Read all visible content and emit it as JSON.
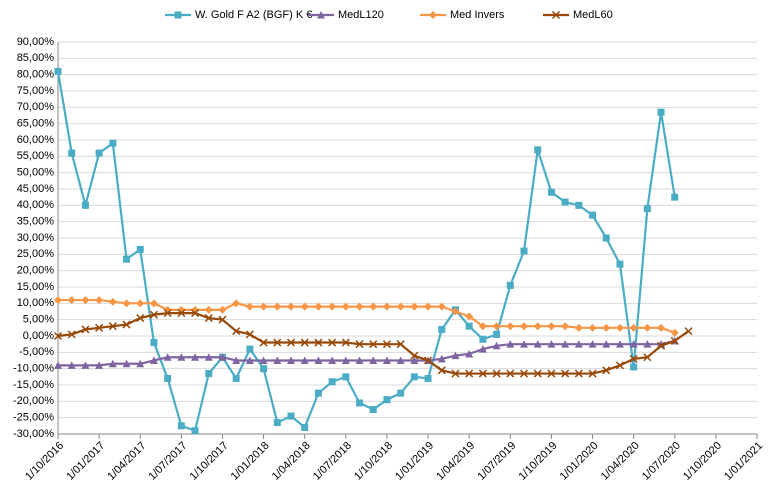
{
  "chart_data": {
    "type": "line",
    "x": [
      "1/10/2016",
      "1/11/2016",
      "1/12/2016",
      "1/01/2017",
      "1/02/2017",
      "1/03/2017",
      "1/04/2017",
      "1/05/2017",
      "1/06/2017",
      "1/07/2017",
      "1/08/2017",
      "1/09/2017",
      "1/10/2017",
      "1/11/2017",
      "1/12/2017",
      "1/01/2018",
      "1/02/2018",
      "1/03/2018",
      "1/04/2018",
      "1/05/2018",
      "1/06/2018",
      "1/07/2018",
      "1/08/2018",
      "1/09/2018",
      "1/10/2018",
      "1/11/2018",
      "1/12/2018",
      "1/01/2019",
      "1/02/2019",
      "1/03/2019",
      "1/04/2019",
      "1/05/2019",
      "1/06/2019",
      "1/07/2019",
      "1/08/2019",
      "1/09/2019",
      "1/10/2019",
      "1/11/2019",
      "1/12/2019",
      "1/01/2020",
      "1/02/2020",
      "1/03/2020",
      "1/04/2020",
      "1/05/2020",
      "1/06/2020",
      "1/07/2020",
      "1/08/2020"
    ],
    "series": [
      {
        "name": "W. Gold F A2 (BGF) K €",
        "color": "#4bacc6",
        "marker": "square",
        "values": [
          81,
          56,
          40,
          56,
          59,
          23.5,
          26.5,
          -2,
          -13,
          -27.5,
          -29,
          -11.5,
          -6.5,
          -13,
          -4,
          -10,
          -26.5,
          -24.5,
          -28,
          -17.5,
          -14,
          -12.5,
          -20.5,
          -22.5,
          -19.5,
          -17.5,
          -12.5,
          -13,
          2,
          8,
          3,
          -1,
          0.5,
          15.5,
          26,
          57,
          44,
          41,
          40,
          37,
          30,
          22,
          -9.5,
          39,
          68.5,
          42.5,
          null
        ]
      },
      {
        "name": "MedL120",
        "color": "#8064a2",
        "marker": "triangle",
        "values": [
          -9,
          -9,
          -9,
          -9,
          -8.5,
          -8.5,
          -8.5,
          -7.5,
          -6.5,
          -6.5,
          -6.5,
          -6.5,
          -6.5,
          -7.5,
          -7.5,
          -7.5,
          -7.5,
          -7.5,
          -7.5,
          -7.5,
          -7.5,
          -7.5,
          -7.5,
          -7.5,
          -7.5,
          -7.5,
          -7.5,
          -7.5,
          -7,
          -6,
          -5.5,
          -4,
          -3,
          -2.5,
          -2.5,
          -2.5,
          -2.5,
          -2.5,
          -2.5,
          -2.5,
          -2.5,
          -2.5,
          -2.5,
          -2.5,
          -2.5,
          -1.5,
          null
        ]
      },
      {
        "name": "Med Invers",
        "color": "#f79646",
        "marker": "diamond",
        "values": [
          11,
          11,
          11,
          11,
          10.5,
          10,
          10,
          10,
          8,
          8,
          8,
          8,
          8,
          10,
          9,
          9,
          9,
          9,
          9,
          9,
          9,
          9,
          9,
          9,
          9,
          9,
          9,
          9,
          9,
          7.5,
          6,
          3,
          3,
          3,
          3,
          3,
          3,
          3,
          2.5,
          2.5,
          2.5,
          2.5,
          2.5,
          2.5,
          2.5,
          1,
          null
        ]
      },
      {
        "name": "MedL60",
        "color": "#984807",
        "marker": "x",
        "values": [
          0,
          0.5,
          2,
          2.5,
          3,
          3.5,
          5.5,
          6.5,
          7,
          7,
          7,
          5.5,
          5,
          1.5,
          0.5,
          -2,
          -2,
          -2,
          -2,
          -2,
          -2,
          -2,
          -2.5,
          -2.5,
          -2.5,
          -2.5,
          -6,
          -7.5,
          -10.5,
          -11.5,
          -11.5,
          -11.5,
          -11.5,
          -11.5,
          -11.5,
          -11.5,
          -11.5,
          -11.5,
          -11.5,
          -11.5,
          -10.5,
          -9,
          -7,
          -6.5,
          -3,
          -1.5,
          1.5
        ]
      }
    ],
    "xlim": [
      "1/10/2016",
      "1/01/2021"
    ],
    "xticks": [
      "1/10/2016",
      "1/01/2017",
      "1/04/2017",
      "1/07/2017",
      "1/10/2017",
      "1/01/2018",
      "1/04/2018",
      "1/07/2018",
      "1/10/2018",
      "1/01/2019",
      "1/04/2019",
      "1/07/2019",
      "1/10/2019",
      "1/01/2020",
      "1/04/2020",
      "1/07/2020",
      "1/10/2020",
      "1/01/2021"
    ],
    "ylim": [
      -30,
      90
    ],
    "yticks": [
      {
        "value": -30,
        "label": "-30,00%"
      },
      {
        "value": -25,
        "label": "-25,00%"
      },
      {
        "value": -20,
        "label": "-20,00%"
      },
      {
        "value": -15,
        "label": "-15,00%"
      },
      {
        "value": -10,
        "label": "-10,00%"
      },
      {
        "value": -5,
        "label": "-5,00%"
      },
      {
        "value": 0,
        "label": "0,00%"
      },
      {
        "value": 5,
        "label": "5,00%"
      },
      {
        "value": 10,
        "label": "10,00%"
      },
      {
        "value": 15,
        "label": "15,00%"
      },
      {
        "value": 20,
        "label": "20,00%"
      },
      {
        "value": 25,
        "label": "25,00%"
      },
      {
        "value": 30,
        "label": "30,00%"
      },
      {
        "value": 35,
        "label": "35,00%"
      },
      {
        "value": 40,
        "label": "40,00%"
      },
      {
        "value": 45,
        "label": "45,00%"
      },
      {
        "value": 50,
        "label": "50,00%"
      },
      {
        "value": 55,
        "label": "55,00%"
      },
      {
        "value": 60,
        "label": "60,00%"
      },
      {
        "value": 65,
        "label": "65,00%"
      },
      {
        "value": 70,
        "label": "70,00%"
      },
      {
        "value": 75,
        "label": "75,00%"
      },
      {
        "value": 80,
        "label": "80,00%"
      },
      {
        "value": 85,
        "label": "85,00%"
      },
      {
        "value": 90,
        "label": "90,00%"
      }
    ],
    "grid": true,
    "legend": "top"
  }
}
